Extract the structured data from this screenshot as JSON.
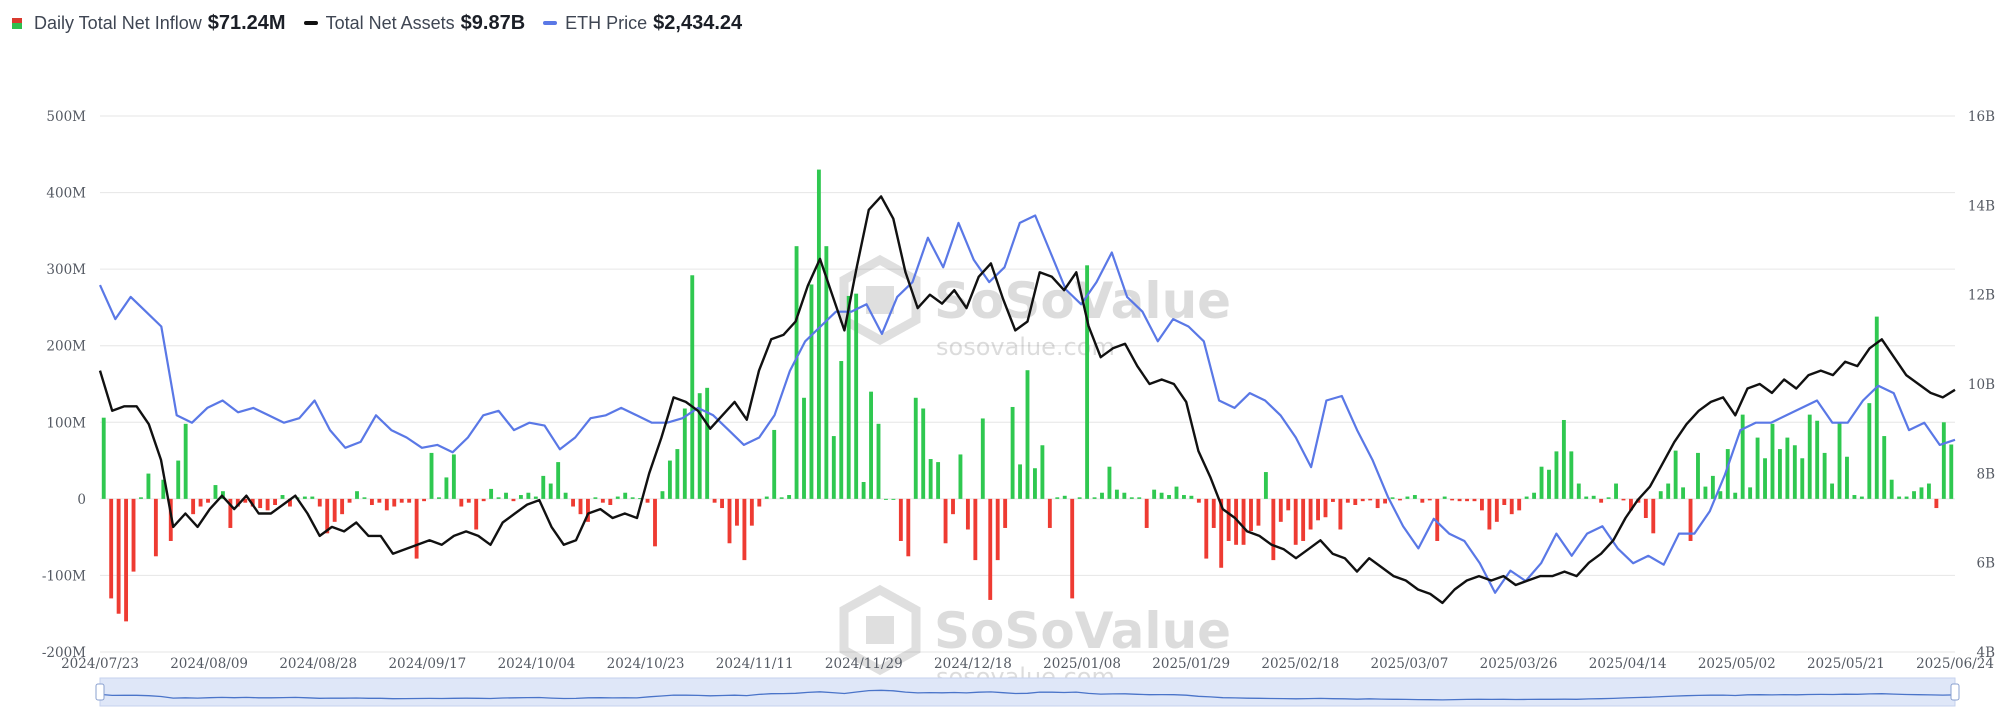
{
  "legend": {
    "items": [
      {
        "label": "Daily Total Net Inflow",
        "value": "$71.24M"
      },
      {
        "label": "Total Net Assets",
        "value": "$9.87B"
      },
      {
        "label": "ETH Price",
        "value": "$2,434.24"
      }
    ]
  },
  "watermark": {
    "brand": "SoSoValue",
    "url": "sosovalue.com"
  },
  "colors": {
    "inflow_positive": "#2fc850",
    "inflow_negative": "#ee3b32",
    "net_assets": "#111111",
    "eth_price": "#5a78e6",
    "grid": "#e6e6e6"
  },
  "chart_data": {
    "type": "bar+line",
    "x_tick_labels": [
      "2024/07/23",
      "2024/08/09",
      "2024/08/28",
      "2024/09/17",
      "2024/10/04",
      "2024/10/23",
      "2024/11/11",
      "2024/11/29",
      "2024/12/18",
      "2025/01/08",
      "2025/01/29",
      "2025/02/18",
      "2025/03/07",
      "2025/03/26",
      "2025/04/14",
      "2025/05/02",
      "2025/05/21",
      "2025/06/24"
    ],
    "y_left": {
      "ticks": [
        "500M",
        "400M",
        "300M",
        "200M",
        "100M",
        "0",
        "-100M",
        "-200M"
      ],
      "range": [
        -200,
        500
      ],
      "unit": "M"
    },
    "y_right": {
      "ticks": [
        "16B",
        "14B",
        "12B",
        "10B",
        "8B",
        "6B",
        "4B"
      ],
      "range": [
        4,
        16
      ],
      "unit": "B"
    },
    "series": [
      {
        "name": "Daily Total Net Inflow",
        "type": "bar",
        "unit": "M",
        "values": [
          106,
          -130,
          -150,
          -160,
          -95,
          2,
          33,
          -75,
          25,
          -55,
          50,
          98,
          -20,
          -10,
          -5,
          18,
          10,
          -38,
          -10,
          -5,
          -10,
          -12,
          -15,
          -8,
          5,
          -10,
          2,
          3,
          3,
          -10,
          -45,
          -30,
          -20,
          -5,
          10,
          2,
          -8,
          -5,
          -15,
          -10,
          -5,
          -5,
          -78,
          -3,
          60,
          2,
          28,
          58,
          -10,
          -5,
          -40,
          -3,
          13,
          2,
          8,
          -3,
          5,
          8,
          3,
          30,
          20,
          48,
          8,
          -10,
          -20,
          -30,
          2,
          -5,
          -8,
          3,
          8,
          2,
          1,
          -5,
          -62,
          10,
          50,
          65,
          118,
          292,
          138,
          145,
          -5,
          -12,
          -58,
          -35,
          -80,
          -35,
          -10,
          3,
          90,
          2,
          5,
          330,
          132,
          280,
          430,
          330,
          82,
          180,
          265,
          268,
          22,
          140,
          98,
          0,
          0,
          -55,
          -75,
          132,
          118,
          52,
          48,
          -58,
          -20,
          58,
          -40,
          -80,
          105,
          -132,
          -80,
          -38,
          120,
          45,
          168,
          40,
          70,
          -38,
          2,
          4,
          -130,
          2,
          305,
          2,
          8,
          42,
          12,
          8,
          2,
          2,
          -38,
          12,
          8,
          5,
          16,
          5,
          4,
          -5,
          -78,
          -38,
          -90,
          -55,
          -60,
          -60,
          -42,
          -35,
          35,
          -80,
          -30,
          -15,
          -60,
          -55,
          -40,
          -28,
          -24,
          -4,
          -40,
          -5,
          -8,
          -3,
          -2,
          -12,
          -6,
          2,
          -2,
          3,
          5,
          -5,
          -2,
          -55,
          3,
          -2,
          -3,
          -3,
          -3,
          -15,
          -40,
          -30,
          -8,
          -20,
          -15,
          3,
          8,
          42,
          38,
          62,
          103,
          62,
          20,
          3,
          4,
          -5,
          2,
          20,
          -2,
          -15,
          -5,
          -25,
          -45,
          10,
          20,
          63,
          15,
          -55,
          60,
          16,
          30,
          10,
          65,
          8,
          110,
          15,
          80,
          53,
          98,
          65,
          80,
          70,
          53,
          110,
          102,
          60,
          20,
          100,
          55,
          5,
          3,
          125,
          238,
          82,
          25,
          3,
          3,
          10,
          15,
          20,
          -12,
          100,
          71
        ]
      },
      {
        "name": "Total Net Assets",
        "type": "line",
        "unit": "B",
        "values": [
          10.3,
          9.4,
          9.5,
          9.5,
          9.1,
          8.3,
          6.8,
          7.1,
          6.8,
          7.2,
          7.5,
          7.2,
          7.5,
          7.1,
          7.1,
          7.3,
          7.5,
          7.1,
          6.6,
          6.8,
          6.7,
          6.9,
          6.6,
          6.6,
          6.2,
          6.3,
          6.4,
          6.5,
          6.4,
          6.6,
          6.7,
          6.6,
          6.4,
          6.9,
          7.1,
          7.3,
          7.4,
          6.8,
          6.4,
          6.5,
          7.1,
          7.2,
          7.0,
          7.1,
          7.0,
          8.0,
          8.8,
          9.7,
          9.6,
          9.4,
          9.0,
          9.3,
          9.6,
          9.2,
          10.3,
          11.0,
          11.1,
          11.4,
          12.2,
          12.8,
          12.0,
          11.2,
          12.6,
          13.9,
          14.2,
          13.7,
          12.5,
          11.7,
          12.0,
          11.8,
          12.1,
          11.7,
          12.4,
          12.7,
          11.9,
          11.2,
          11.4,
          12.5,
          12.4,
          12.1,
          12.5,
          11.3,
          10.6,
          10.8,
          10.9,
          10.4,
          10.0,
          10.1,
          10.0,
          9.6,
          8.5,
          7.9,
          7.2,
          7.0,
          6.7,
          6.6,
          6.4,
          6.3,
          6.1,
          6.3,
          6.5,
          6.2,
          6.1,
          5.8,
          6.1,
          5.9,
          5.7,
          5.6,
          5.4,
          5.3,
          5.1,
          5.4,
          5.6,
          5.7,
          5.6,
          5.7,
          5.5,
          5.6,
          5.7,
          5.7,
          5.8,
          5.7,
          6.0,
          6.2,
          6.5,
          7.0,
          7.4,
          7.7,
          8.2,
          8.7,
          9.1,
          9.4,
          9.6,
          9.7,
          9.3,
          9.9,
          10.0,
          9.8,
          10.1,
          9.9,
          10.2,
          10.3,
          10.2,
          10.5,
          10.4,
          10.8,
          11.0,
          10.6,
          10.2,
          10.0,
          9.8,
          9.7,
          9.87
        ]
      },
      {
        "name": "ETH Price",
        "type": "line",
        "unit": "USD",
        "values": [
          3480,
          3250,
          3400,
          3300,
          3200,
          2600,
          2550,
          2650,
          2700,
          2620,
          2650,
          2600,
          2550,
          2580,
          2700,
          2500,
          2380,
          2420,
          2600,
          2500,
          2450,
          2380,
          2400,
          2350,
          2450,
          2600,
          2630,
          2500,
          2550,
          2530,
          2370,
          2450,
          2580,
          2600,
          2650,
          2600,
          2550,
          2550,
          2580,
          2650,
          2600,
          2500,
          2400,
          2450,
          2600,
          2900,
          3100,
          3200,
          3300,
          3300,
          3350,
          3150,
          3400,
          3500,
          3800,
          3600,
          3900,
          3650,
          3500,
          3600,
          3900,
          3950,
          3700,
          3450,
          3350,
          3500,
          3700,
          3400,
          3300,
          3100,
          3250,
          3200,
          3100,
          2700,
          2650,
          2750,
          2700,
          2600,
          2450,
          2250,
          2700,
          2730,
          2500,
          2300,
          2050,
          1850,
          1700,
          1900,
          1800,
          1750,
          1600,
          1400,
          1550,
          1480,
          1600,
          1800,
          1650,
          1800,
          1850,
          1700,
          1600,
          1650,
          1590,
          1800,
          1800,
          1950,
          2200,
          2500,
          2550,
          2550,
          2600,
          2650,
          2700,
          2550,
          2550,
          2700,
          2800,
          2750,
          2500,
          2550,
          2400,
          2434
        ]
      }
    ]
  }
}
